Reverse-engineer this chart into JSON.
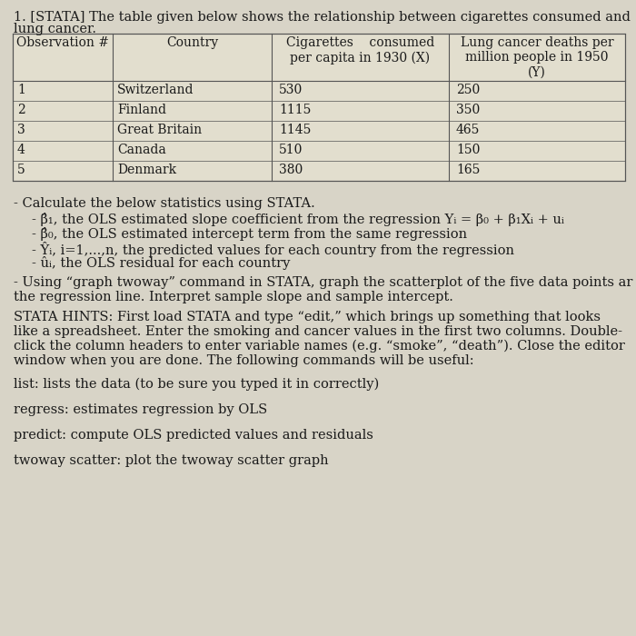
{
  "title_line1": "1. [STATA] The table given below shows the relationship between cigarettes consumed and",
  "title_line2": "lung cancer.",
  "col_headers_row1": [
    "Observation #",
    "Country",
    "Cigarettes    consumed",
    "Lung cancer deaths per"
  ],
  "col_headers_row2": [
    "",
    "",
    "per capita in 1930 (X)",
    "million people in 1950"
  ],
  "col_headers_row3": [
    "",
    "",
    "",
    "(Y)"
  ],
  "rows": [
    [
      "1",
      "Switzerland",
      "530",
      "250"
    ],
    [
      "2",
      "Finland",
      "1115",
      "350"
    ],
    [
      "3",
      "Great Britain",
      "1145",
      "465"
    ],
    [
      "4",
      "Canada",
      "510",
      "150"
    ],
    [
      "5",
      "Denmark",
      "380",
      "165"
    ]
  ],
  "bullet_section_title": "- Calculate the below statistics using STATA.",
  "bullet1": "- β̂₁, the OLS estimated slope coefficient from the regression Yᵢ = β₀ + β₁Xᵢ + uᵢ",
  "bullet2": "- β̂₀, the OLS estimated intercept term from the same regression",
  "bullet3": "- Ŷᵢ, i=1,...,n, the predicted values for each country from the regression",
  "bullet4": "- ûᵢ, the OLS residual for each country",
  "scatter_line1": "- Using “graph twoway” command in STATA, graph the scatterplot of the five data points ar",
  "scatter_line2": "the regression line. Interpret sample slope and sample intercept.",
  "hints_line1": "STATA HINTS: First load STATA and type “edit,” which brings up something that looks",
  "hints_line2": "like a spreadsheet. Enter the smoking and cancer values in the first two columns. Double-",
  "hints_line3": "click the column headers to enter variable names (e.g. “smoke”, “death”). Close the editor",
  "hints_line4": "window when you are done. The following commands will be useful:",
  "cmd1": "list: lists the data (to be sure you typed it in correctly)",
  "cmd2": "regress: estimates regression by OLS",
  "cmd3": "predict: compute OLS predicted values and residuals",
  "cmd4": "twoway scatter: plot the twoway scatter graph",
  "bg_color": "#d8d4c7",
  "text_color": "#1a1a1a",
  "table_line_color": "#555555",
  "font_size": 10.5,
  "small_font_size": 10.0
}
